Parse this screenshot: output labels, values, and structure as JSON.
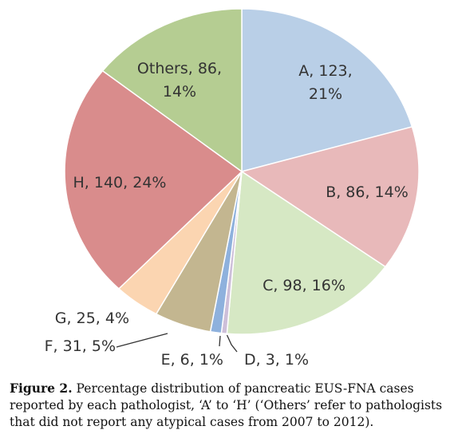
{
  "chart_data": {
    "type": "pie",
    "slices": [
      {
        "label": "A, 123,",
        "label2": "21%",
        "name": "A",
        "value": 123,
        "percent": 21,
        "color": "#b9cfe7"
      },
      {
        "label": "B, 86, 14%",
        "name": "B",
        "value": 86,
        "percent": 14,
        "color": "#e8b9ba"
      },
      {
        "label": "C, 98, 16%",
        "name": "C",
        "value": 98,
        "percent": 16,
        "color": "#d6e8c4"
      },
      {
        "label": "D, 3, 1%",
        "name": "D",
        "value": 3,
        "percent": 1,
        "color": "#cdbfd9"
      },
      {
        "label": "E, 6, 1%",
        "name": "E",
        "value": 6,
        "percent": 1,
        "color": "#8eb1dd"
      },
      {
        "label": "F, 31, 5%",
        "name": "F",
        "value": 31,
        "percent": 5,
        "color": "#c3b690"
      },
      {
        "label": "G, 25, 4%",
        "name": "G",
        "value": 25,
        "percent": 4,
        "color": "#fbd5b1"
      },
      {
        "label": "H, 140, 24%",
        "name": "H",
        "value": 140,
        "percent": 24,
        "color": "#d98c8c"
      },
      {
        "label": "Others, 86,",
        "label2": "14%",
        "name": "Others",
        "value": 86,
        "percent": 14,
        "color": "#b5cd92"
      }
    ]
  },
  "caption": {
    "figure_label": "Figure 2.",
    "text": "Percentage distribution of pancreatic EUS-FNA cases reported by each pathologist, ‘A’ to ‘H’ (‘Others’ refer to pathologists that did not report any atypical cases from 2007 to 2012)."
  }
}
